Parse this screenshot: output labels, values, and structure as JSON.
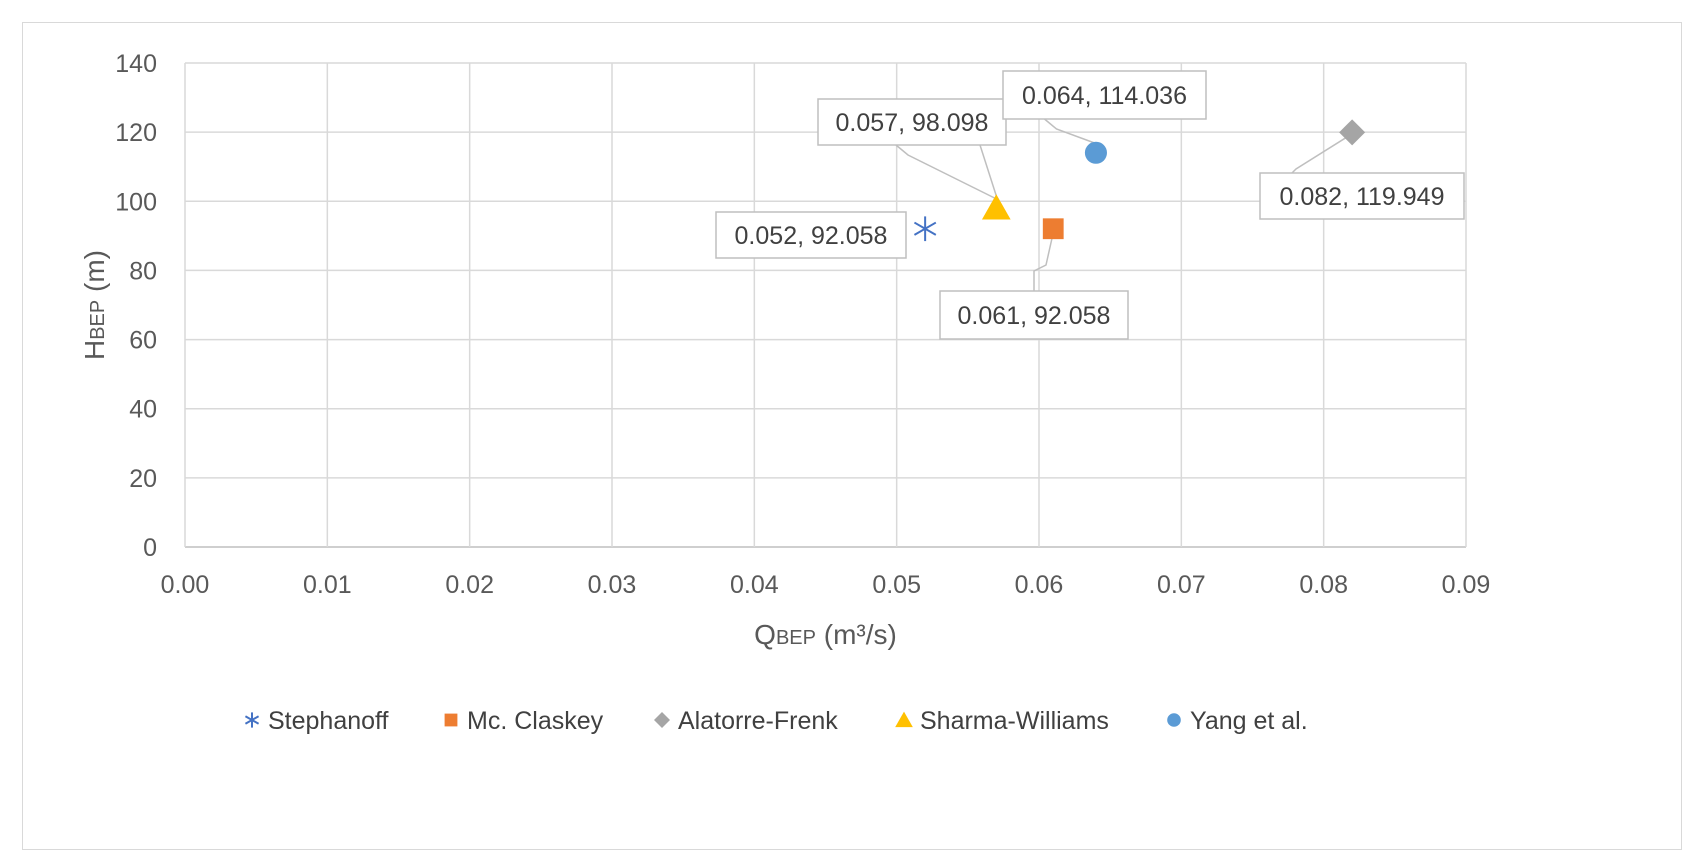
{
  "chart_data": {
    "type": "scatter",
    "title": "",
    "xlabel_main": "Q",
    "xlabel_sub": "BEP",
    "xlabel_unit": " (m³/s)",
    "ylabel_main": "H",
    "ylabel_sub": "BEP",
    "ylabel_unit": " (m)",
    "xlim": [
      0,
      0.09
    ],
    "ylim": [
      0,
      140
    ],
    "x_ticks": [
      "0.00",
      "0.01",
      "0.02",
      "0.03",
      "0.04",
      "0.05",
      "0.06",
      "0.07",
      "0.08",
      "0.09"
    ],
    "y_ticks": [
      "0",
      "20",
      "40",
      "60",
      "80",
      "100",
      "120",
      "140"
    ],
    "grid": true,
    "legend_position": "bottom",
    "series": [
      {
        "name": "Stephanoff",
        "marker": "asterisk",
        "color": "#4472c4",
        "x": 0.052,
        "y": 92.058,
        "label": "0.052, 92.058"
      },
      {
        "name": "Mc. Claskey",
        "marker": "square",
        "color": "#ed7d31",
        "x": 0.061,
        "y": 92.058,
        "label": "0.061, 92.058"
      },
      {
        "name": "Alatorre-Frenk",
        "marker": "diamond",
        "color": "#a5a5a5",
        "x": 0.082,
        "y": 119.949,
        "label": "0.082, 119.949"
      },
      {
        "name": "Sharma-Williams",
        "marker": "triangle",
        "color": "#ffc000",
        "x": 0.057,
        "y": 98.098,
        "label": "0.057, 98.098"
      },
      {
        "name": "Yang et al.",
        "marker": "circle",
        "color": "#5b9bd5",
        "x": 0.064,
        "y": 114.036,
        "label": "0.064, 114.036"
      }
    ]
  }
}
